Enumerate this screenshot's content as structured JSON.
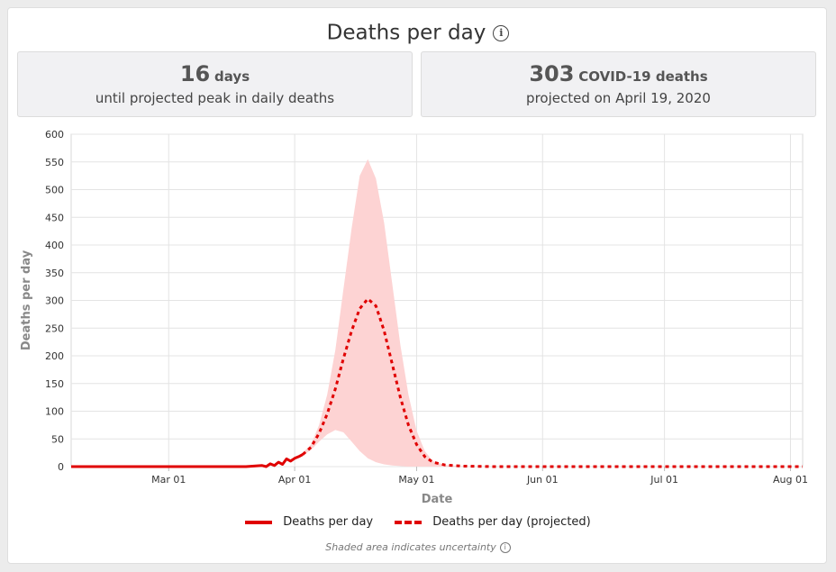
{
  "header": {
    "title": "Deaths per day",
    "info_icon": "info-icon"
  },
  "cards": [
    {
      "big": "16",
      "unit": "days",
      "sub": "until projected peak in daily deaths"
    },
    {
      "big": "303",
      "unit": "COVID-19 deaths",
      "sub": "projected on April 19, 2020"
    }
  ],
  "legend": {
    "actual": "Deaths per day",
    "projected": "Deaths per day (projected)"
  },
  "note": "Shaded area indicates uncertainty",
  "colors": {
    "line": "#e00000",
    "band": "#fdd3d3",
    "grid": "#e4e4e4"
  },
  "chart_data": {
    "type": "line",
    "xlabel": "Date",
    "ylabel": "Deaths per day",
    "ylim": [
      0,
      600
    ],
    "y_ticks": [
      "0",
      "50",
      "100",
      "150",
      "200",
      "250",
      "300",
      "350",
      "400",
      "450",
      "500",
      "550",
      "600"
    ],
    "x_ticks": [
      "Mar 01",
      "Apr 01",
      "May 01",
      "Jun 01",
      "Jul 01",
      "Aug 01"
    ],
    "x_tick_dates": [
      "2020-03-01",
      "2020-04-01",
      "2020-05-01",
      "2020-06-01",
      "2020-07-01",
      "2020-08-01"
    ],
    "x_range": [
      "2020-02-06",
      "2020-08-04"
    ],
    "grid": true,
    "legend_position": "bottom",
    "series": [
      {
        "name": "Deaths per day",
        "style": "solid",
        "x": [
          "2020-02-06",
          "2020-03-20",
          "2020-03-24",
          "2020-03-25",
          "2020-03-26",
          "2020-03-27",
          "2020-03-28",
          "2020-03-29",
          "2020-03-30",
          "2020-03-31",
          "2020-04-01",
          "2020-04-02",
          "2020-04-03"
        ],
        "y": [
          0,
          0,
          2,
          0,
          5,
          2,
          8,
          4,
          14,
          10,
          15,
          18,
          22
        ]
      },
      {
        "name": "Deaths per day (projected)",
        "style": "dashed",
        "x": [
          "2020-04-03",
          "2020-04-05",
          "2020-04-07",
          "2020-04-09",
          "2020-04-11",
          "2020-04-13",
          "2020-04-15",
          "2020-04-17",
          "2020-04-19",
          "2020-04-21",
          "2020-04-23",
          "2020-04-25",
          "2020-04-27",
          "2020-04-29",
          "2020-05-01",
          "2020-05-03",
          "2020-05-05",
          "2020-05-08",
          "2020-05-12",
          "2020-05-20",
          "2020-06-01",
          "2020-07-01",
          "2020-08-04"
        ],
        "y": [
          22,
          35,
          60,
          95,
          140,
          195,
          245,
          285,
          303,
          290,
          245,
          185,
          125,
          75,
          40,
          18,
          8,
          3,
          1,
          0,
          0,
          0,
          0
        ]
      }
    ],
    "uncertainty_band": {
      "x": [
        "2020-04-03",
        "2020-04-05",
        "2020-04-07",
        "2020-04-09",
        "2020-04-11",
        "2020-04-13",
        "2020-04-15",
        "2020-04-17",
        "2020-04-19",
        "2020-04-21",
        "2020-04-23",
        "2020-04-25",
        "2020-04-27",
        "2020-04-29",
        "2020-05-01",
        "2020-05-03",
        "2020-05-05",
        "2020-05-08",
        "2020-05-12",
        "2020-05-20",
        "2020-06-01"
      ],
      "upper": [
        25,
        40,
        75,
        130,
        210,
        320,
        430,
        525,
        555,
        520,
        440,
        330,
        220,
        130,
        65,
        28,
        10,
        3,
        1,
        0,
        0
      ],
      "lower": [
        20,
        30,
        45,
        58,
        66,
        62,
        45,
        28,
        15,
        8,
        4,
        2,
        1,
        0,
        0,
        0,
        0,
        0,
        0,
        0,
        0
      ]
    }
  }
}
